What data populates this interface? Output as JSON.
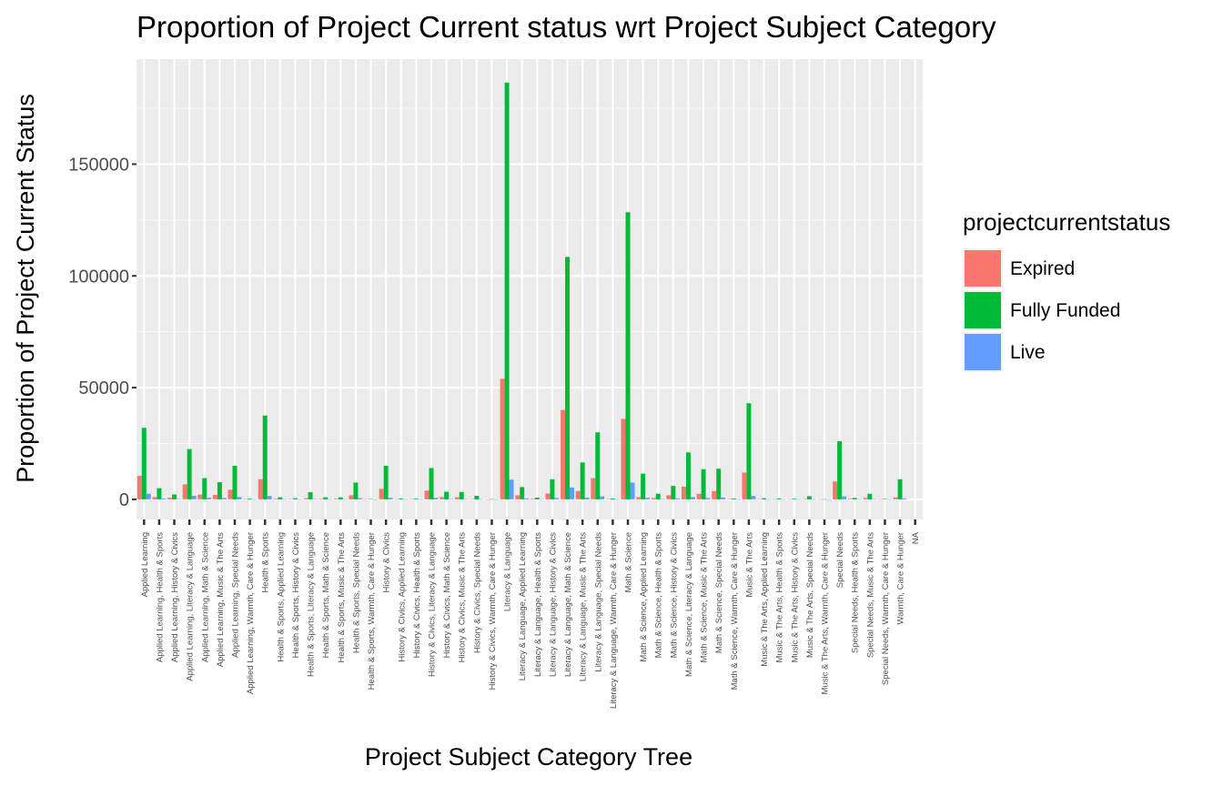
{
  "chart_data": {
    "type": "bar",
    "title": "Proportion of Project Current status wrt Project Subject Category",
    "xlabel": "Project Subject Category Tree",
    "ylabel": "Proportion of Project Current Status",
    "ylim": [
      -9000,
      197000
    ],
    "yticks": [
      0,
      50000,
      100000,
      150000
    ],
    "ytick_labels": [
      "0",
      "50000",
      "100000",
      "150000"
    ],
    "grid": true,
    "legend_position": "right",
    "legend_title": "projectcurrentstatus",
    "categories": [
      "Applied Learning",
      "Applied Learning, Health & Sports",
      "Applied Learning, History & Civics",
      "Applied Learning, Literacy & Language",
      "Applied Learning, Math & Science",
      "Applied Learning, Music & The Arts",
      "Applied Learning, Special Needs",
      "Applied Learning, Warmth, Care & Hunger",
      "Health & Sports",
      "Health & Sports, Applied Learning",
      "Health & Sports, History & Civics",
      "Health & Sports, Literacy & Language",
      "Health & Sports, Math & Science",
      "Health & Sports, Music & The Arts",
      "Health & Sports, Special Needs",
      "Health & Sports, Warmth, Care & Hunger",
      "History & Civics",
      "History & Civics, Applied Learning",
      "History & Civics, Health & Sports",
      "History & Civics, Literacy & Language",
      "History & Civics, Math & Science",
      "History & Civics, Music & The Arts",
      "History & Civics, Special Needs",
      "History & Civics, Warmth, Care & Hunger",
      "Literacy & Language",
      "Literacy & Language, Applied Learning",
      "Literacy & Language, Health & Sports",
      "Literacy & Language, History & Civics",
      "Literacy & Language, Math & Science",
      "Literacy & Language, Music & The Arts",
      "Literacy & Language, Special Needs",
      "Literacy & Language, Warmth, Care & Hunger",
      "Math & Science",
      "Math & Science, Applied Learning",
      "Math & Science, Health & Sports",
      "Math & Science, History & Civics",
      "Math & Science, Literacy & Language",
      "Math & Science, Music & The Arts",
      "Math & Science, Special Needs",
      "Math & Science, Warmth, Care & Hunger",
      "Music & The Arts",
      "Music & The Arts, Applied Learning",
      "Music & The Arts, Health & Sports",
      "Music & The Arts, History & Civics",
      "Music & The Arts, Special Needs",
      "Music & The Arts, Warmth, Care & Hunger",
      "Special Needs",
      "Special Needs, Health & Sports",
      "Special Needs, Music & The Arts",
      "Special Needs, Warmth, Care & Hunger",
      "Warmth, Care & Hunger",
      "NA"
    ],
    "series": [
      {
        "name": "Expired",
        "color": "#F8766D",
        "values": [
          10500,
          1000,
          700,
          6700,
          2100,
          2000,
          4300,
          200,
          9000,
          300,
          150,
          500,
          250,
          300,
          1800,
          100,
          4700,
          100,
          100,
          3900,
          1000,
          900,
          200,
          50,
          54000,
          1800,
          300,
          2600,
          40000,
          3700,
          9500,
          200,
          36000,
          1000,
          600,
          1800,
          5700,
          2500,
          3700,
          150,
          12000,
          150,
          100,
          100,
          200,
          50,
          8000,
          300,
          600,
          100,
          900,
          0
        ]
      },
      {
        "name": "Fully Funded",
        "color": "#00BA38",
        "values": [
          32000,
          5000,
          2200,
          22500,
          9500,
          7700,
          15000,
          300,
          37500,
          900,
          500,
          3200,
          900,
          900,
          7500,
          200,
          15000,
          400,
          300,
          14000,
          3400,
          3300,
          1600,
          100,
          186500,
          5500,
          800,
          9000,
          108500,
          16500,
          30000,
          400,
          128500,
          11500,
          2500,
          6000,
          21000,
          13500,
          13700,
          400,
          43000,
          500,
          400,
          300,
          1400,
          100,
          26000,
          600,
          2500,
          200,
          9000,
          0
        ]
      },
      {
        "name": "Live",
        "color": "#619CFF",
        "values": [
          2500,
          400,
          200,
          1600,
          700,
          600,
          1000,
          50,
          1500,
          100,
          50,
          200,
          100,
          100,
          500,
          20,
          700,
          50,
          50,
          700,
          200,
          200,
          100,
          20,
          8800,
          400,
          100,
          600,
          5300,
          800,
          1300,
          50,
          7500,
          700,
          200,
          400,
          1000,
          600,
          800,
          50,
          1500,
          50,
          50,
          50,
          100,
          20,
          1300,
          100,
          200,
          50,
          400,
          0
        ]
      }
    ]
  }
}
